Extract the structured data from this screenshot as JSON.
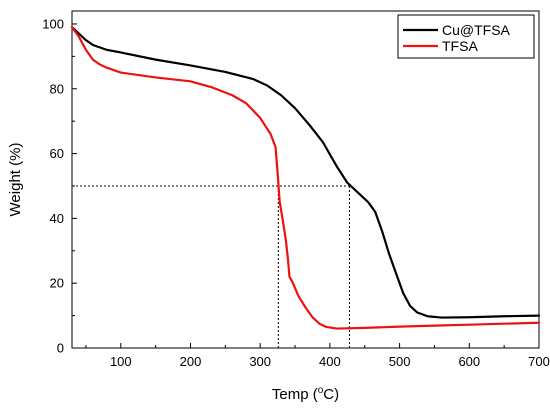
{
  "chart_data": {
    "type": "line",
    "xlabel": "Temp (°C)",
    "xlabel_parts": [
      "Temp (",
      "o",
      "C)"
    ],
    "ylabel": "Weight (%)",
    "xlim": [
      30,
      700
    ],
    "ylim": [
      0,
      104
    ],
    "xticks": [
      100,
      200,
      300,
      400,
      500,
      600,
      700
    ],
    "yticks": [
      0,
      20,
      40,
      60,
      80,
      100
    ],
    "grid": false,
    "legend_position": "top-right",
    "series": [
      {
        "name": "Cu@TFSA",
        "color": "#000000",
        "points": [
          [
            30,
            99
          ],
          [
            40,
            97
          ],
          [
            50,
            95
          ],
          [
            60,
            93.5
          ],
          [
            80,
            92
          ],
          [
            100,
            91.2
          ],
          [
            150,
            89
          ],
          [
            200,
            87.2
          ],
          [
            250,
            85.2
          ],
          [
            290,
            83
          ],
          [
            310,
            81
          ],
          [
            330,
            78
          ],
          [
            350,
            74
          ],
          [
            370,
            69
          ],
          [
            390,
            63.5
          ],
          [
            410,
            56
          ],
          [
            425,
            51
          ],
          [
            440,
            48
          ],
          [
            455,
            45
          ],
          [
            465,
            42
          ],
          [
            475,
            36
          ],
          [
            485,
            29
          ],
          [
            495,
            23
          ],
          [
            505,
            17
          ],
          [
            515,
            13
          ],
          [
            525,
            11
          ],
          [
            540,
            9.8
          ],
          [
            560,
            9.4
          ],
          [
            600,
            9.5
          ],
          [
            650,
            9.8
          ],
          [
            700,
            10
          ]
        ]
      },
      {
        "name": "TFSA",
        "color": "#ee1111",
        "points": [
          [
            30,
            99
          ],
          [
            40,
            96
          ],
          [
            50,
            92
          ],
          [
            60,
            89
          ],
          [
            70,
            87.5
          ],
          [
            80,
            86.5
          ],
          [
            100,
            85
          ],
          [
            150,
            83.5
          ],
          [
            200,
            82.3
          ],
          [
            230,
            80.5
          ],
          [
            260,
            78
          ],
          [
            280,
            75.5
          ],
          [
            300,
            71
          ],
          [
            315,
            66
          ],
          [
            322,
            62
          ],
          [
            325,
            54
          ],
          [
            328,
            45
          ],
          [
            332,
            40
          ],
          [
            337,
            33
          ],
          [
            340,
            27
          ],
          [
            342,
            22
          ],
          [
            347,
            20
          ],
          [
            355,
            16
          ],
          [
            365,
            12.5
          ],
          [
            375,
            9.5
          ],
          [
            385,
            7.5
          ],
          [
            395,
            6.5
          ],
          [
            410,
            6
          ],
          [
            450,
            6.2
          ],
          [
            500,
            6.6
          ],
          [
            550,
            6.9
          ],
          [
            600,
            7.2
          ],
          [
            650,
            7.5
          ],
          [
            700,
            7.8
          ]
        ]
      }
    ],
    "reference_lines": {
      "y": 50,
      "x_values": [
        326,
        428
      ]
    }
  }
}
